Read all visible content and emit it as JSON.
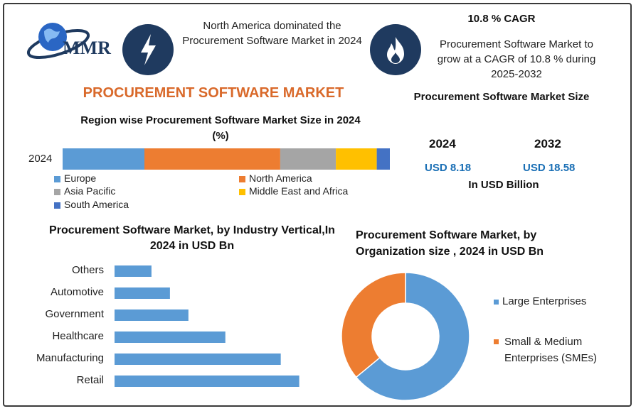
{
  "logo": {
    "text": "MMR"
  },
  "header": {
    "dominance_text": "North America dominated the Procurement Software Market in 2024",
    "cagr_title": "10.8 % CAGR",
    "cagr_text": "Procurement Software Market to grow at a CAGR of 10.8 % during 2025-2032"
  },
  "icons": {
    "left": "lightning-bolt-icon",
    "right": "flame-icon"
  },
  "main_title": "PROCUREMENT SOFTWARE MARKET",
  "colors": {
    "title": "#d9692a",
    "navy": "#1f3a5f",
    "value_blue": "#1a6fb5"
  },
  "market_size": {
    "title": "Procurement Software Market Size",
    "year1": "2024",
    "year2": "2032",
    "value1": "USD 8.18",
    "value2": "USD 18.58",
    "unit": "In USD Billion"
  },
  "chart_data": [
    {
      "type": "bar",
      "orientation": "horizontal-stacked",
      "title": "Region wise Procurement Software Market Size in 2024 (%)",
      "categories": [
        "2024"
      ],
      "series": [
        {
          "name": "Europe",
          "values": [
            25
          ],
          "color": "#5b9bd5"
        },
        {
          "name": "North America",
          "values": [
            41.5
          ],
          "color": "#ed7d31"
        },
        {
          "name": "Asia Pacific",
          "values": [
            17
          ],
          "color": "#a5a5a5"
        },
        {
          "name": "Middle East and Africa",
          "values": [
            12.5
          ],
          "color": "#ffc000"
        },
        {
          "name": "South America",
          "values": [
            4
          ],
          "color": "#4472c4"
        }
      ]
    },
    {
      "type": "bar",
      "orientation": "horizontal",
      "title": "Procurement Software Market, by Industry Vertical,In 2024 in USD Bn",
      "categories": [
        "Others",
        "Automotive",
        "Government",
        "Healthcare",
        "Manufacturing",
        "Retail"
      ],
      "values": [
        0.5,
        0.75,
        1.0,
        1.5,
        2.25,
        2.5
      ],
      "xlim": [
        0,
        2.6
      ],
      "color": "#5b9bd5"
    },
    {
      "type": "pie",
      "style": "donut",
      "title": "Procurement Software Market, by Organization size , 2024 in USD Bn",
      "categories": [
        "Large Enterprises",
        "Small & Medium Enterprises (SMEs)"
      ],
      "values": [
        64,
        36
      ],
      "colors": [
        "#5b9bd5",
        "#ed7d31"
      ]
    }
  ]
}
